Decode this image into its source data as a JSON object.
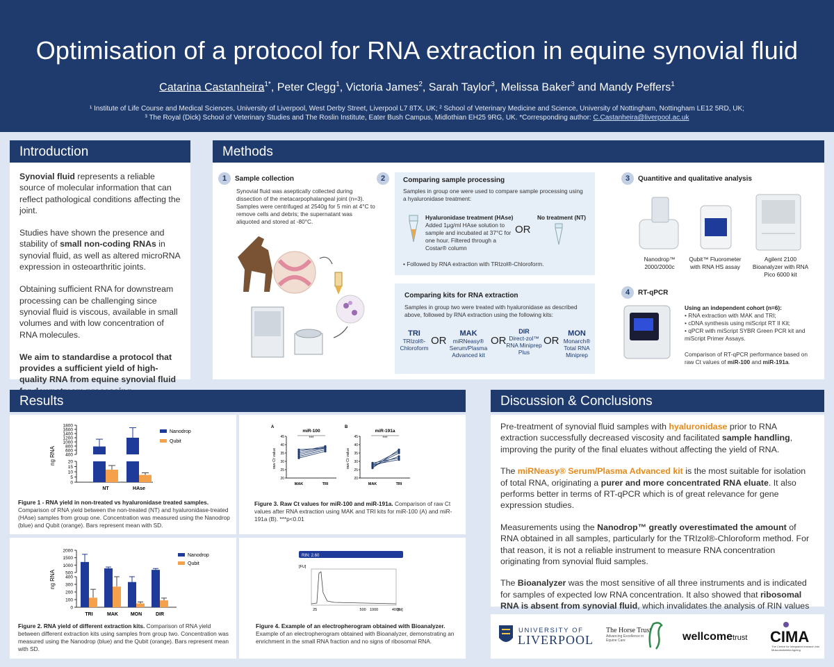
{
  "header": {
    "title": "Optimisation of a protocol for RNA extraction in equine synovial fluid",
    "author_main": "Catarina Castanheira",
    "author_main_sup": "1*",
    "authors_rest": [
      {
        "name": ", Peter Clegg",
        "sup": "1"
      },
      {
        "name": ", Victoria James",
        "sup": "2"
      },
      {
        "name": ", Sarah Taylor",
        "sup": "3"
      },
      {
        "name": ", Melissa Baker",
        "sup": "3"
      },
      {
        "name": " and Mandy Peffers",
        "sup": "1"
      }
    ],
    "affil_line1": "¹ Institute of Life Course and Medical Sciences, University of Liverpool, West Derby Street, Liverpool L7 8TX, UK; ² School of Veterinary Medicine and Science, University of Nottingham, Nottingham LE12 5RD, UK;",
    "affil_line2": "³ The Royal (Dick) School of Veterinary Studies and The Roslin Institute, Eater Bush Campus, Midlothian EH25 9RG, UK. *Corresponding author: ",
    "affil_email": "C.Castanheira@liverpool.ac.uk"
  },
  "intro": {
    "heading": "Introduction",
    "p1_bold": "Synovial fluid",
    "p1_rest": " represents a reliable source of molecular information that can reflect pathological conditions affecting the joint.",
    "p2_a": "Studies have shown the presence and stability of ",
    "p2_bold": "small non-coding RNAs",
    "p2_b": " in synovial fluid, as well as altered microRNA expression in osteoarthritic joints.",
    "p3": "Obtaining sufficient RNA for downstream processing can be challenging since synovial fluid is viscous, available in small volumes and with low concentration of RNA molecules.",
    "p4_bold": "We aim to standardise a protocol that provides a sufficient yield of high-quality RNA from equine synovial fluid for downstream processing."
  },
  "methods": {
    "heading": "Methods",
    "s1_num": "1",
    "s1_title": "Sample collection",
    "s1_text": "Synovial fluid was aseptically collected during dissection of the metacarpophalangeal joint (n=3). Samples were centrifuged at 2540g for 5 min at 4°C to remove cells and debris; the supernatant was aliquoted and stored at -80°C.",
    "s2_num": "2",
    "s2_title": "Comparing sample processing",
    "s2_text": "Samples in group one were used to compare sample processing using a hyaluronidase treatment:",
    "hase_title": "Hyaluronidase treatment (HAse)",
    "hase_text": "Added 1μg/ml HAse solution to sample and incubated at 37°C for one hour. Filtered through a Costar® column",
    "or": "OR",
    "nt_title": "No treatment (NT)",
    "s2_follow": "• Followed by RNA extraction with TRIzol®-Chloroform.",
    "kits_title": "Comparing kits for RNA extraction",
    "kits_text": "Samples in group two were treated with hyaluronidase as described above, followed by RNA extraction using the following kits:",
    "kits": [
      {
        "code": "TRI",
        "name": "TRIzol®-Chloroform"
      },
      {
        "code": "MAK",
        "name": "miRNeasy® Serum/Plasma Advanced kit"
      },
      {
        "code": "DIR",
        "name": "Direct-zol™ RNA Miniprep Plus"
      },
      {
        "code": "MON",
        "name": "Monarch® Total RNA Miniprep"
      }
    ],
    "s3_num": "3",
    "s3_title": "Quantitive and qualitative analysis",
    "instruments": [
      {
        "name": "Nanodrop™ 2000/2000c"
      },
      {
        "name": "Qubit™ Fluorometer with RNA HS assay"
      },
      {
        "name": "Agilent 2100 Bioanalyzer with RNA Pico 6000 kit"
      }
    ],
    "s4_num": "4",
    "s4_title": "RT-qPCR",
    "rt_head": "Using an independent cohort (n=6):",
    "rt_items": [
      "• RNA extraction with MAK and TRI;",
      "• cDNA synthesis using miScript RT II Kit;",
      "• qPCR with miScript SYBR Green PCR kit and miScript Primer Assays."
    ],
    "rt_comp_a": "Comparison of RT-qPCR performance based on raw Ct values of ",
    "rt_comp_b": "miR-100",
    "rt_comp_c": " and ",
    "rt_comp_d": "miR-191a",
    "rt_comp_e": "."
  },
  "results": {
    "heading": "Results",
    "fig1_title": "Figure 1 - RNA yield in non-treated vs hyaluronidase treated samples.",
    "fig1_text": " Comparison of RNA yield between the non-treated (NT) and hyaluronidase-treated (HAse) samples from group one. Concentration was measured using the Nanodrop (blue) and Qubit (orange). Bars represent mean with SD.",
    "fig2_title": "Figure 2. RNA yield of different extraction kits.",
    "fig2_text": " Comparison of RNA yield between different extraction kits using samples from group two. Concentration was measured using the Nanodrop (blue) and the Qubit (orange). Bars represent mean with SD.",
    "fig3_title": "Figure 3. Raw Ct values for miR-100 and miR-191a.",
    "fig3_text": " Comparison of raw Ct values after RNA extraction using MAK and TRI kits for miR-100 (A) and miR-191a (B).  ***p<0.01",
    "fig4_title": "Figure 4. Example of an electropherogram obtained with Bioanalyzer.",
    "fig4_text": " Example of an electropherogram obtained with Bioanalyzer, demonstrating an enrichment in the small RNA fraction and no signs of ribosomal RNA."
  },
  "chart_data": [
    {
      "type": "bar",
      "ylabel": "ng RNA",
      "categories": [
        "NT",
        "HAse"
      ],
      "series": [
        {
          "name": "Nanodrop",
          "values": [
            780,
            1200
          ],
          "sd": [
            350,
            480
          ]
        },
        {
          "name": "Qubit",
          "values": [
            12,
            7
          ],
          "sd": [
            4,
            2
          ]
        }
      ],
      "yticks_upper": [
        "1800",
        "1600",
        "1400",
        "1200",
        "1000",
        "800",
        "600",
        "400"
      ],
      "yticks_lower": [
        "20",
        "15",
        "10",
        "5",
        "0"
      ],
      "colors": {
        "Nanodrop": "#1f3b9a",
        "Qubit": "#f5a04a"
      }
    },
    {
      "type": "bar",
      "ylabel": "ng RNA",
      "categories": [
        "TRI",
        "MAK",
        "MON",
        "DIR"
      ],
      "series": [
        {
          "name": "Nanodrop",
          "values": [
            1210,
            780,
            330,
            680
          ],
          "sd": [
            520,
            90,
            70,
            90
          ]
        },
        {
          "name": "Qubit",
          "values": [
            125,
            270,
            50,
            90
          ],
          "sd": [
            110,
            170,
            20,
            30
          ]
        }
      ],
      "yticks": [
        "2000",
        "1500",
        "1000",
        "500",
        "400",
        "300",
        "200",
        "100",
        "0"
      ],
      "colors": {
        "Nanodrop": "#1f3b9a",
        "Qubit": "#f5a04a"
      }
    },
    {
      "type": "scatter",
      "panels": [
        {
          "label": "A",
          "title": "miR-100",
          "sig": "***",
          "ylabel": "raw Ct value",
          "categories": [
            "MAK",
            "TRI"
          ],
          "yticks": [
            "45",
            "40",
            "35",
            "30",
            "25",
            "20"
          ],
          "ylim": [
            20,
            45
          ],
          "pairs": [
            [
              32,
              36
            ],
            [
              33,
              37
            ],
            [
              34,
              38
            ],
            [
              35,
              38.5
            ],
            [
              36,
              39
            ],
            [
              37,
              38
            ]
          ]
        },
        {
          "label": "B",
          "title": "miR-191a",
          "sig": "***",
          "ylabel": "raw Ct value",
          "categories": [
            "MAK",
            "TRI"
          ],
          "yticks": [
            "45",
            "40",
            "35",
            "30",
            "25",
            "20"
          ],
          "ylim": [
            20,
            45
          ],
          "pairs": [
            [
              26,
              37
            ],
            [
              27,
              35
            ],
            [
              27,
              33
            ],
            [
              28,
              36
            ],
            [
              29,
              32
            ],
            [
              28,
              31
            ]
          ]
        }
      ]
    },
    {
      "type": "line",
      "header": "RIN: 2.60",
      "ylabel": "[FU]",
      "xlabel": "[nt]",
      "xticks": [
        "25",
        "200",
        "500",
        "1000",
        "2000",
        "4000"
      ],
      "xlim": [
        20,
        4000
      ],
      "peak_at_nt": 35
    }
  ],
  "discussion": {
    "heading": "Discussion & Conclusions",
    "p1_a": "Pre-treatment of synovial fluid samples with ",
    "p1_b": "hyaluronidase",
    "p1_c": " prior to RNA extraction successfully decreased viscosity and facilitated ",
    "p1_d": "sample handling",
    "p1_e": ", improving the purity of the final eluates without affecting the yield of RNA.",
    "p2_a": "The ",
    "p2_b": "miRNeasy® Serum/Plasma Advanced kit",
    "p2_c": " is the most suitable for isolation of total RNA, originating a ",
    "p2_d": "purer and more concentrated RNA eluate",
    "p2_e": ". It also performs better in terms of RT-qPCR which is of great relevance for gene expression studies.",
    "p3_a": "Measurements using the ",
    "p3_b": "Nanodrop™ greatly overestimated the amount",
    "p3_c": " of RNA obtained in all samples, particularly for the TRIzol®-Chloroform method. For that reason, it is not a reliable instrument to measure RNA concentration originating from synovial fluid samples.",
    "p4_a": "The ",
    "p4_b": "Bioanalyzer",
    "p4_c": " was the most sensitive of all three instruments and is indicated for samples of expected low RNA concentration. It also showed that ",
    "p4_d": "ribosomal RNA is absent from synovial fluid",
    "p4_e": ", which invalidates the analysis of RIN values in these type of biological samples."
  },
  "logos": {
    "liverpool_a": "UNIVERSITY OF",
    "liverpool_b": "LIVERPOOL",
    "horse_a": "The Horse Trust",
    "horse_b": "Advancing Excellence in Equine Care",
    "wellcome_a": "wellcome",
    "wellcome_b": "trust",
    "cima": "CIMA",
    "cima_sub": "The Centre for Integrated research into Musculoskeletal Ageing"
  },
  "colors": {
    "navy": "#1f3b6e",
    "nanodrop": "#1f3b9a",
    "qubit": "#f5a04a",
    "accent_orange": "#e88a1a"
  }
}
